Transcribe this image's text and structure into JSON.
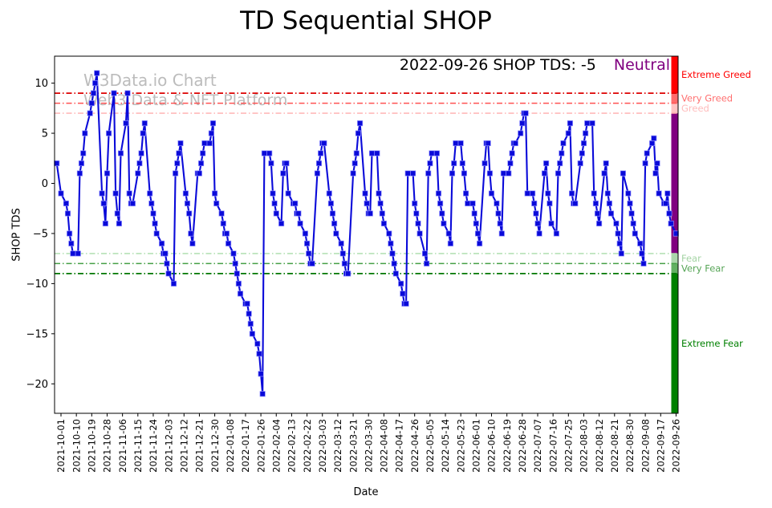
{
  "title": "TD Sequential SHOP",
  "annotation": {
    "status_text": "2022-09-26 SHOP TDS: -5",
    "sentiment": "Neutral",
    "sentiment_color": "#800080"
  },
  "watermark": {
    "line1": "W3Data.io Chart",
    "line2": "Web3 Data & NFT Platform"
  },
  "chart_data": {
    "type": "line",
    "title": "TD Sequential SHOP",
    "xlabel": "Date",
    "ylabel": "SHOP TDS",
    "ylim": [
      -22.9,
      12.7
    ],
    "grid": false,
    "legend": "none",
    "line_color": "#0a0ad9",
    "marker": "square",
    "y_ticks": [
      10,
      5,
      0,
      -5,
      -10,
      -15,
      -20
    ],
    "y_tick_labels": [
      "10",
      "5",
      "0",
      "−5",
      "−10",
      "−15",
      "−20"
    ],
    "x_tick_labels": [
      "2021-10-01",
      "2021-10-10",
      "2021-10-19",
      "2021-10-28",
      "2021-11-06",
      "2021-11-15",
      "2021-11-24",
      "2021-12-03",
      "2021-12-12",
      "2021-12-21",
      "2021-12-30",
      "2022-01-08",
      "2022-01-17",
      "2022-01-26",
      "2022-02-04",
      "2022-02-13",
      "2022-02-22",
      "2022-03-03",
      "2022-03-12",
      "2022-03-21",
      "2022-03-30",
      "2022-04-08",
      "2022-04-17",
      "2022-04-26",
      "2022-05-05",
      "2022-05-14",
      "2022-05-23",
      "2022-06-01",
      "2022-06-10",
      "2022-06-19",
      "2022-06-28",
      "2022-07-07",
      "2022-07-16",
      "2022-07-25",
      "2022-08-03",
      "2022-08-12",
      "2022-08-21",
      "2022-08-30",
      "2022-09-08",
      "2022-09-17",
      "2022-09-26"
    ],
    "x_tick_day_step": 9,
    "threshold_lines": [
      {
        "value": 9,
        "color": "#dd0000",
        "width": 1.7
      },
      {
        "value": 8,
        "color": "#ff5252",
        "width": 1.5
      },
      {
        "value": 7,
        "color": "#ffadad",
        "width": 1.3
      },
      {
        "value": -7,
        "color": "#a9dca9",
        "width": 1.3
      },
      {
        "value": -8,
        "color": "#46a046",
        "width": 1.5
      },
      {
        "value": -9,
        "color": "#007700",
        "width": 1.7
      }
    ],
    "sentiment_bands": [
      {
        "label": "Extreme Greed",
        "from": null,
        "to": 9,
        "color": "#ff0000",
        "label_color": "#ff0000"
      },
      {
        "label": "Very Greed",
        "from": 9,
        "to": 8,
        "color": "#ff6b6b",
        "label_color": "#ff7070"
      },
      {
        "label": "Greed",
        "from": 8,
        "to": 7,
        "color": "#ffc2c2",
        "label_color": "#ffbcbc"
      },
      {
        "label": "Neutral",
        "from": 7,
        "to": -7,
        "color": "#800080",
        "label_color": "#800080"
      },
      {
        "label": "Fear",
        "from": -7,
        "to": -8,
        "color": "#abd6ab",
        "label_color": "#a4d4a4"
      },
      {
        "label": "Very Fear",
        "from": -8,
        "to": -9,
        "color": "#63b063",
        "label_color": "#56a556"
      },
      {
        "label": "Extreme Fear",
        "from": -9,
        "to": null,
        "color": "#008000",
        "label_color": "#008000"
      }
    ],
    "show_band_labels": [
      "Extreme Greed",
      "Very Greed",
      "Greed",
      "Fear",
      "Very Fear",
      "Extreme Fear"
    ],
    "series": {
      "name": "SHOP TDS",
      "start_date": "2021-10-01",
      "end_date": "2022-09-26",
      "first_point_day_offset": -2.5,
      "last_value": -5,
      "values": [
        2,
        -1,
        -2,
        -3,
        -5,
        -6,
        -7,
        -7,
        1,
        2,
        3,
        5,
        7,
        8,
        9,
        10,
        11,
        -1,
        -2,
        -4,
        1,
        5,
        9,
        -1,
        -3,
        -4,
        3,
        6,
        9,
        -1,
        -2,
        -2,
        1,
        2,
        3,
        5,
        6,
        -1,
        -2,
        -3,
        -4,
        -5,
        -6,
        -7,
        -7,
        -8,
        -9,
        -10,
        1,
        2,
        3,
        4,
        -1,
        -2,
        -3,
        -5,
        -6,
        1,
        1,
        2,
        3,
        4,
        4,
        5,
        6,
        -1,
        -2,
        -3,
        -4,
        -5,
        -5,
        -6,
        -7,
        -8,
        -9,
        -10,
        -11,
        -12,
        -12,
        -13,
        -14,
        -15,
        -16,
        -17,
        -19,
        -21,
        3,
        3,
        2,
        -1,
        -2,
        -3,
        -4,
        1,
        2,
        2,
        -1,
        -2,
        -2,
        -3,
        -3,
        -4,
        -5,
        -6,
        -7,
        -8,
        -8,
        1,
        2,
        3,
        4,
        4,
        -1,
        -2,
        -3,
        -4,
        -5,
        -6,
        -7,
        -8,
        -9,
        -9,
        1,
        2,
        3,
        5,
        6,
        -1,
        -2,
        -3,
        -3,
        3,
        3,
        -1,
        -2,
        -3,
        -4,
        -5,
        -6,
        -7,
        -8,
        -9,
        -10,
        -11,
        -12,
        -12,
        1,
        1,
        -2,
        -3,
        -4,
        -5,
        -7,
        -8,
        1,
        2,
        3,
        3,
        -1,
        -2,
        -3,
        -4,
        -5,
        -6,
        1,
        2,
        4,
        4,
        2,
        1,
        -1,
        -2,
        -2,
        -3,
        -4,
        -5,
        -6,
        2,
        4,
        4,
        1,
        -1,
        -2,
        -3,
        -4,
        -5,
        1,
        1,
        2,
        3,
        4,
        4,
        5,
        6,
        7,
        7,
        -1,
        -1,
        -2,
        -3,
        -4,
        -5,
        1,
        2,
        -1,
        -2,
        -4,
        -5,
        1,
        2,
        3,
        4,
        5,
        6,
        -1,
        -2,
        -2,
        2,
        3,
        4,
        5,
        6,
        6,
        -1,
        -2,
        -3,
        -4,
        1,
        2,
        -1,
        -2,
        -3,
        -4,
        -5,
        -6,
        -7,
        1,
        -1,
        -2,
        -3,
        -4,
        -5,
        -6,
        -7,
        -8,
        2,
        3,
        4,
        4.5,
        1,
        2,
        -1,
        -2,
        -2,
        -1,
        -3,
        -4,
        -5
      ]
    }
  }
}
